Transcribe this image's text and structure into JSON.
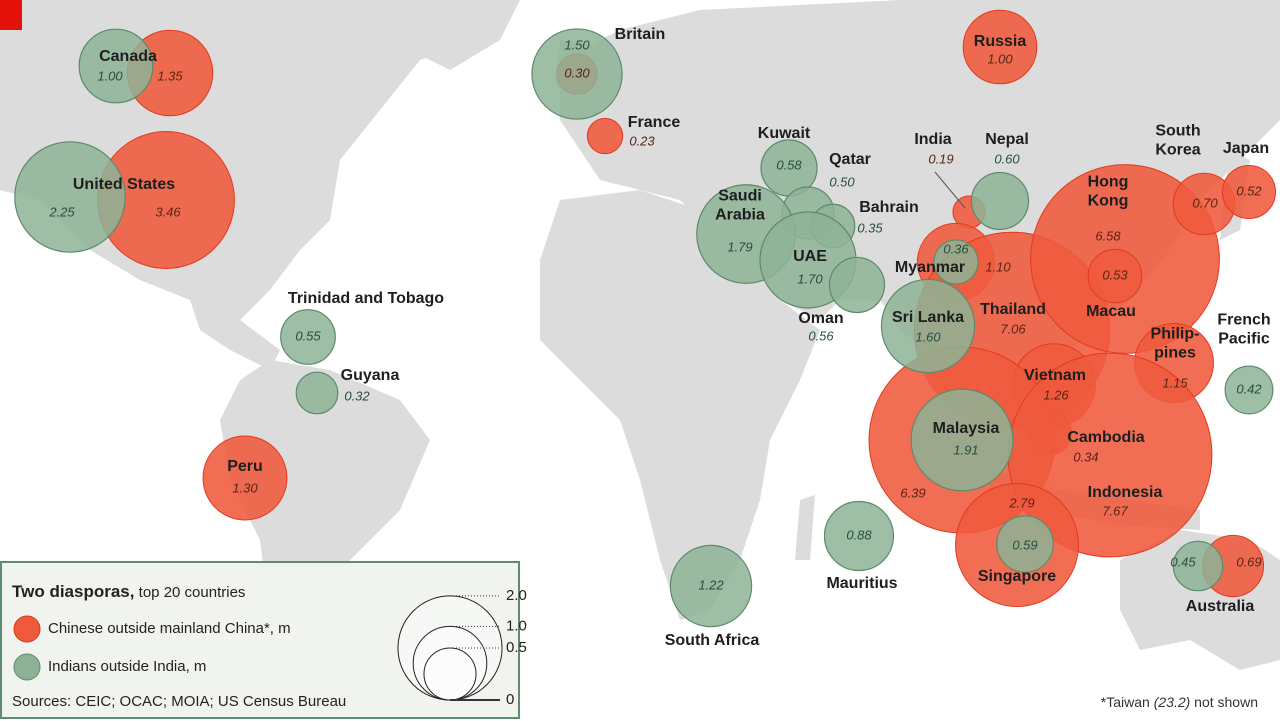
{
  "map": {
    "legend": {
      "title": "Two diasporas,",
      "subtitle": "top 20 countries",
      "chinese": {
        "name": "Chinese outside mainland China*, m",
        "color": "#ef5a3c"
      },
      "indians": {
        "name": "Indians outside India, m",
        "color": "#8db396"
      },
      "sources": "Sources: CEIC; OCAC; MOIA; US Census Bureau",
      "scale_ticks": [
        {
          "value": 2.0,
          "label": "2.0"
        },
        {
          "value": 1.0,
          "label": "1.0"
        },
        0.5,
        0
      ]
    },
    "note": {
      "prefix": "*Taiwan",
      "value": 23.2,
      "label": "(23.2)",
      "suffix": "not shown"
    },
    "places": [
      {
        "name": [
          "Canada"
        ],
        "chinese": {
          "value": 1.35,
          "label": "1.35"
        },
        "indians": {
          "value": 1.0,
          "label": "1.00"
        }
      },
      {
        "name": [
          "United States"
        ],
        "chinese": {
          "value": 3.46,
          "label": "3.46"
        },
        "indians": {
          "value": 2.25,
          "label": "2.25"
        }
      },
      {
        "name": [
          "Trinidad and Tobago"
        ],
        "chinese": null,
        "indians": {
          "value": 0.55,
          "label": "0.55"
        }
      },
      {
        "name": [
          "Guyana"
        ],
        "chinese": null,
        "indians": {
          "value": 0.32,
          "label": "0.32"
        }
      },
      {
        "name": [
          "Peru"
        ],
        "chinese": {
          "value": 1.3,
          "label": "1.30"
        },
        "indians": null
      },
      {
        "name": [
          "Britain"
        ],
        "chinese": {
          "value": 0.3,
          "label": "0.30"
        },
        "indians": {
          "value": 1.5,
          "label": "1.50"
        }
      },
      {
        "name": [
          "France"
        ],
        "chinese": {
          "value": 0.23,
          "label": "0.23"
        },
        "indians": null
      },
      {
        "name": [
          "Russia"
        ],
        "chinese": {
          "value": 1.0,
          "label": "1.00"
        },
        "indians": null
      },
      {
        "name": [
          "Kuwait"
        ],
        "chinese": null,
        "indians": {
          "value": 0.58,
          "label": "0.58"
        }
      },
      {
        "name": [
          "Qatar"
        ],
        "chinese": null,
        "indians": {
          "value": 0.5,
          "label": "0.50"
        }
      },
      {
        "name": [
          "Bahrain"
        ],
        "chinese": null,
        "indians": {
          "value": 0.35,
          "label": "0.35"
        }
      },
      {
        "name": [
          "Saudi",
          "Arabia"
        ],
        "chinese": null,
        "indians": {
          "value": 1.79,
          "label": "1.79"
        }
      },
      {
        "name": [
          "UAE"
        ],
        "chinese": null,
        "indians": {
          "value": 1.7,
          "label": "1.70"
        }
      },
      {
        "name": [
          "Oman"
        ],
        "chinese": null,
        "indians": {
          "value": 0.56,
          "label": "0.56"
        }
      },
      {
        "name": [
          "India"
        ],
        "chinese": {
          "value": 0.19,
          "label": "0.19"
        },
        "indians": null
      },
      {
        "name": [
          "Nepal"
        ],
        "chinese": null,
        "indians": {
          "value": 0.6,
          "label": "0.60"
        }
      },
      {
        "name": [
          "Myanmar"
        ],
        "chinese": {
          "value": 1.1,
          "label": "1.10"
        },
        "indians": {
          "value": 0.36,
          "label": "0.36"
        }
      },
      {
        "name": [
          "Sri Lanka"
        ],
        "chinese": null,
        "indians": {
          "value": 1.6,
          "label": "1.60"
        }
      },
      {
        "name": [
          "Thailand"
        ],
        "chinese": {
          "value": 7.06,
          "label": "7.06"
        },
        "indians": null
      },
      {
        "name": [
          "Hong",
          "Kong"
        ],
        "chinese": {
          "value": 6.58,
          "label": "6.58"
        },
        "indians": null
      },
      {
        "name": [
          "Macau"
        ],
        "chinese": {
          "value": 0.53,
          "label": "0.53"
        },
        "indians": null
      },
      {
        "name": [
          "South",
          "Korea"
        ],
        "chinese": {
          "value": 0.7,
          "label": "0.70"
        },
        "indians": null
      },
      {
        "name": [
          "Japan"
        ],
        "chinese": {
          "value": 0.52,
          "label": "0.52"
        },
        "indians": null
      },
      {
        "name": [
          "Philip-",
          "pines"
        ],
        "chinese": {
          "value": 1.15,
          "label": "1.15"
        },
        "indians": null
      },
      {
        "name": [
          "French",
          "Pacific"
        ],
        "chinese": null,
        "indians": {
          "value": 0.42,
          "label": "0.42"
        }
      },
      {
        "name": [
          "Vietnam"
        ],
        "chinese": {
          "value": 1.26,
          "label": "1.26"
        },
        "indians": null
      },
      {
        "name": [
          "Cambodia"
        ],
        "chinese": {
          "value": 0.34,
          "label": "0.34"
        },
        "indians": null
      },
      {
        "name": [
          "Malaysia"
        ],
        "chinese": {
          "value": 6.39,
          "label": "6.39"
        },
        "indians": {
          "value": 1.91,
          "label": "1.91"
        }
      },
      {
        "name": [
          "Indonesia"
        ],
        "chinese": {
          "value": 7.67,
          "label": "7.67"
        },
        "indians": null
      },
      {
        "name": [
          "Singapore"
        ],
        "chinese": {
          "value": 2.79,
          "label": "2.79"
        },
        "indians": {
          "value": 0.59,
          "label": "0.59"
        }
      },
      {
        "name": [
          "Mauritius"
        ],
        "chinese": null,
        "indians": {
          "value": 0.88,
          "label": "0.88"
        }
      },
      {
        "name": [
          "South Africa"
        ],
        "chinese": null,
        "indians": {
          "value": 1.22,
          "label": "1.22"
        }
      },
      {
        "name": [
          "Australia"
        ],
        "chinese": {
          "value": 0.69,
          "label": "0.69"
        },
        "indians": {
          "value": 0.45,
          "label": "0.45"
        }
      }
    ]
  }
}
